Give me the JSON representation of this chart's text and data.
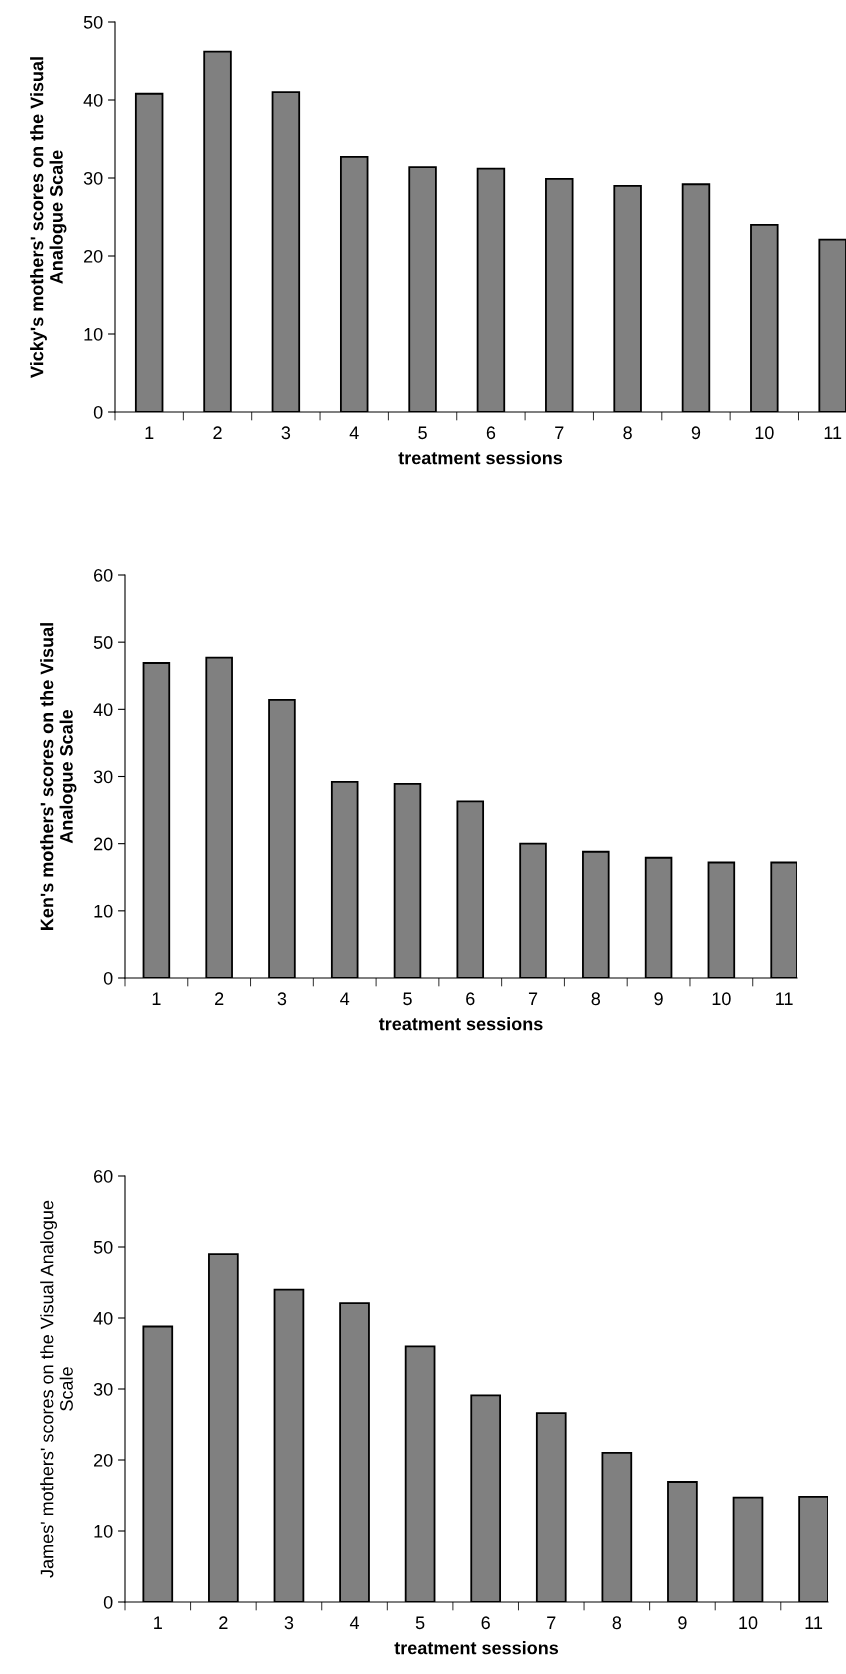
{
  "chart_data": [
    {
      "type": "bar",
      "ylabel": "Vicky's mothers' scores on the Visual Analogue Scale",
      "xlabel": "treatment sessions",
      "categories": [
        "1",
        "2",
        "3",
        "4",
        "5",
        "6",
        "7",
        "8",
        "9",
        "10",
        "11"
      ],
      "values": [
        40.8,
        46.2,
        41,
        32.7,
        31.4,
        31.2,
        29.9,
        29,
        29.2,
        24,
        22.1
      ],
      "color": "#808080",
      "ylim": [
        0,
        50
      ],
      "yticks": [
        0,
        10,
        20,
        30,
        40,
        50
      ],
      "grid": false,
      "legend": false
    },
    {
      "type": "bar",
      "ylabel": "Ken's mothers' scores on the Visual Analogue Scale",
      "xlabel": "treatment sessions",
      "categories": [
        "1",
        "2",
        "3",
        "4",
        "5",
        "6",
        "7",
        "8",
        "9",
        "10",
        "11"
      ],
      "values": [
        46.9,
        47.7,
        41.4,
        29.2,
        28.9,
        26.3,
        20,
        18.8,
        17.9,
        17.2,
        17.2
      ],
      "color": "#808080",
      "ylim": [
        0,
        60
      ],
      "yticks": [
        0,
        10,
        20,
        30,
        40,
        50,
        60
      ],
      "grid": false,
      "legend": false
    },
    {
      "type": "bar",
      "ylabel": "James' mothers' scores on the Visual Analogue Scale",
      "xlabel": "treatment sessions",
      "categories": [
        "1",
        "2",
        "3",
        "4",
        "5",
        "6",
        "7",
        "8",
        "9",
        "10",
        "11"
      ],
      "values": [
        38.8,
        49,
        44,
        42.1,
        36,
        29.1,
        26.6,
        21,
        16.9,
        14.7,
        14.8
      ],
      "color": "#808080",
      "ylim": [
        0,
        60
      ],
      "yticks": [
        0,
        10,
        20,
        30,
        40,
        50,
        60
      ],
      "grid": false,
      "legend": false
    }
  ]
}
